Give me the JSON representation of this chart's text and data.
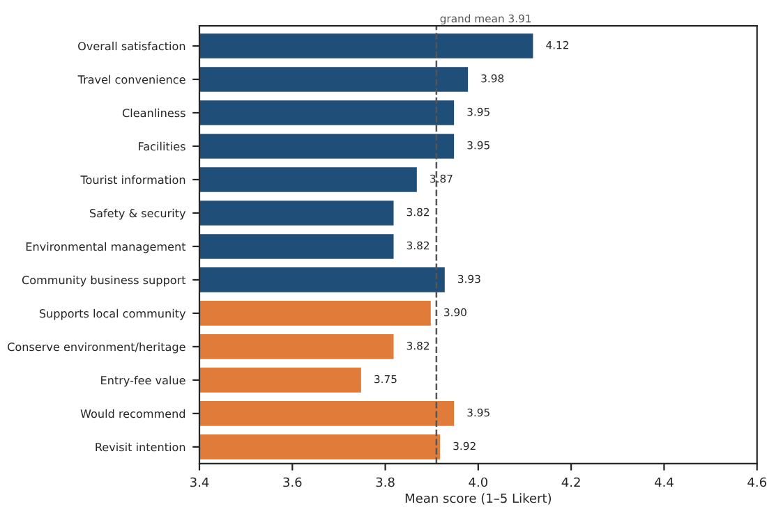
{
  "chart_data": {
    "type": "bar",
    "orientation": "horizontal",
    "xlabel": "Mean score (1–5 Likert)",
    "categories": [
      "Overall satisfaction",
      "Travel convenience",
      "Cleanliness",
      "Facilities",
      "Tourist information",
      "Safety & security",
      "Environmental management",
      "Community business support",
      "Supports local community",
      "Conserve environment/heritage",
      "Entry-fee value",
      "Would recommend",
      "Revisit intention"
    ],
    "values": [
      4.12,
      3.98,
      3.95,
      3.95,
      3.87,
      3.82,
      3.82,
      3.93,
      3.9,
      3.82,
      3.75,
      3.95,
      3.92
    ],
    "value_labels": [
      "4.12",
      "3.98",
      "3.95",
      "3.95",
      "3.87",
      "3.82",
      "3.82",
      "3.93",
      "3.90",
      "3.82",
      "3.75",
      "3.95",
      "3.92"
    ],
    "colors": [
      "#1f4e79",
      "#1f4e79",
      "#1f4e79",
      "#1f4e79",
      "#1f4e79",
      "#1f4e79",
      "#1f4e79",
      "#1f4e79",
      "#e07b39",
      "#e07b39",
      "#e07b39",
      "#e07b39",
      "#e07b39"
    ],
    "xlim": [
      3.4,
      4.6
    ],
    "xticks": [
      3.4,
      3.6,
      3.8,
      {
        "value": 4,
        "label": "4.0"
      },
      4.2,
      4.4,
      4.6
    ],
    "ref_lines": [
      {
        "axis": "x",
        "value": 3.91,
        "label": "grand mean 3.91",
        "color": "#555555",
        "line_style": "dashed"
      }
    ],
    "grid": false
  }
}
